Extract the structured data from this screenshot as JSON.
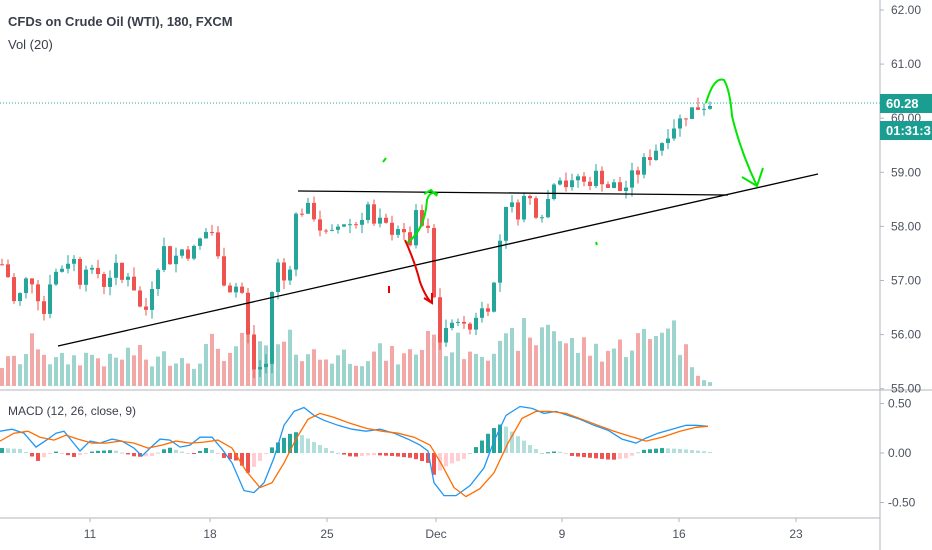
{
  "legend": {
    "title": "CFDs on Crude Oil (WTI), 180, FXCM",
    "volume": "Vol (20)",
    "macd": "MACD (12, 26, close, 9)"
  },
  "price_badge": {
    "last": "60.28",
    "countdown": "01:31:3"
  },
  "colors": {
    "up": "#26a69a",
    "down": "#ef5350",
    "vol_up": "#9dd5ce",
    "vol_down": "#f2a8a6",
    "badge": "#1a9e92",
    "macd_line": "#2196f3",
    "signal_line": "#ff6d00",
    "trend_line": "#000000",
    "annot_green": "#00e600",
    "annot_red": "#e60000"
  },
  "chart_data": [
    {
      "type": "candlestick",
      "title": "CFDs on Crude Oil (WTI), 180, FXCM",
      "y_ticks": [
        "62.00",
        "61.00",
        "60.00",
        "59.00",
        "58.00",
        "57.00",
        "56.00",
        "55.00"
      ],
      "x_ticks": [
        "11",
        "18",
        "25",
        "Dec",
        "9",
        "16",
        "23"
      ],
      "ylim": [
        54.95,
        62.2
      ],
      "last_price": 60.28,
      "close_path": [
        [
          0,
          57.3
        ],
        [
          8,
          57.0
        ],
        [
          14,
          56.4
        ],
        [
          20,
          56.9
        ],
        [
          28,
          57.1
        ],
        [
          36,
          56.7
        ],
        [
          42,
          56.4
        ],
        [
          48,
          57.0
        ],
        [
          56,
          57.2
        ],
        [
          64,
          57.3
        ],
        [
          70,
          57.5
        ],
        [
          78,
          57.0
        ],
        [
          86,
          57.4
        ],
        [
          92,
          57.0
        ],
        [
          98,
          57.2
        ],
        [
          104,
          56.8
        ],
        [
          112,
          57.4
        ],
        [
          118,
          56.9
        ],
        [
          124,
          57.2
        ],
        [
          130,
          57.0
        ],
        [
          136,
          56.6
        ],
        [
          142,
          56.3
        ],
        [
          148,
          56.8
        ],
        [
          156,
          57.3
        ],
        [
          162,
          57.6
        ],
        [
          170,
          57.3
        ],
        [
          178,
          57.6
        ],
        [
          186,
          57.5
        ],
        [
          194,
          57.6
        ],
        [
          202,
          57.9
        ],
        [
          210,
          57.9
        ],
        [
          216,
          57.4
        ],
        [
          222,
          57.0
        ],
        [
          230,
          56.8
        ],
        [
          238,
          57.0
        ],
        [
          244,
          56.3
        ],
        [
          250,
          55.3
        ],
        [
          256,
          55.5
        ],
        [
          262,
          55.2
        ],
        [
          266,
          55.7
        ],
        [
          270,
          56.8
        ],
        [
          276,
          57.3
        ],
        [
          282,
          57.0
        ],
        [
          288,
          57.3
        ],
        [
          292,
          57.9
        ],
        [
          296,
          58.5
        ],
        [
          302,
          58.2
        ],
        [
          308,
          58.4
        ],
        [
          314,
          58.1
        ],
        [
          320,
          57.9
        ],
        [
          328,
          57.8
        ],
        [
          336,
          58.0
        ],
        [
          344,
          58.1
        ],
        [
          352,
          58.0
        ],
        [
          360,
          58.2
        ],
        [
          366,
          58.4
        ],
        [
          372,
          58.0
        ],
        [
          380,
          58.1
        ],
        [
          388,
          57.9
        ],
        [
          396,
          58.0
        ],
        [
          402,
          57.8
        ],
        [
          408,
          57.7
        ],
        [
          414,
          58.2
        ],
        [
          420,
          58.0
        ],
        [
          426,
          57.9
        ],
        [
          430,
          58.0
        ],
        [
          433,
          56.0
        ],
        [
          437,
          55.8
        ],
        [
          442,
          56.2
        ],
        [
          448,
          56.0
        ],
        [
          454,
          56.4
        ],
        [
          460,
          56.2
        ],
        [
          466,
          56.0
        ],
        [
          472,
          56.3
        ],
        [
          478,
          56.5
        ],
        [
          484,
          56.4
        ],
        [
          490,
          56.8
        ],
        [
          496,
          57.2
        ],
        [
          500,
          58.3
        ],
        [
          506,
          58.5
        ],
        [
          512,
          58.3
        ],
        [
          518,
          58.2
        ],
        [
          524,
          58.7
        ],
        [
          530,
          58.4
        ],
        [
          536,
          58.2
        ],
        [
          542,
          58.3
        ],
        [
          548,
          58.6
        ],
        [
          554,
          59.0
        ],
        [
          560,
          58.9
        ],
        [
          566,
          58.7
        ],
        [
          572,
          58.8
        ],
        [
          578,
          59.0
        ],
        [
          584,
          58.7
        ],
        [
          590,
          58.9
        ],
        [
          596,
          59.0
        ],
        [
          602,
          58.8
        ],
        [
          608,
          58.7
        ],
        [
          614,
          58.8
        ],
        [
          620,
          58.6
        ],
        [
          626,
          58.8
        ],
        [
          632,
          59.0
        ],
        [
          638,
          59.0
        ],
        [
          644,
          59.3
        ],
        [
          650,
          59.3
        ],
        [
          656,
          59.5
        ],
        [
          662,
          59.6
        ],
        [
          668,
          59.8
        ],
        [
          674,
          59.9
        ],
        [
          680,
          60.0
        ],
        [
          686,
          60.1
        ],
        [
          692,
          60.2
        ],
        [
          698,
          60.2
        ],
        [
          704,
          60.25
        ],
        [
          708,
          60.28
        ]
      ]
    },
    {
      "type": "bar",
      "title": "Vol (20)",
      "note": "volume histogram, relative heights 0-1 (bars red when candle closes down, teal when up)",
      "volume_path": [
        [
          0,
          0.28
        ],
        [
          20,
          0.35
        ],
        [
          36,
          0.6
        ],
        [
          50,
          0.3
        ],
        [
          70,
          0.35
        ],
        [
          90,
          0.4
        ],
        [
          110,
          0.3
        ],
        [
          130,
          0.45
        ],
        [
          150,
          0.3
        ],
        [
          170,
          0.4
        ],
        [
          190,
          0.32
        ],
        [
          214,
          0.55
        ],
        [
          232,
          0.35
        ],
        [
          244,
          0.62
        ],
        [
          256,
          0.45
        ],
        [
          270,
          0.4
        ],
        [
          290,
          0.55
        ],
        [
          300,
          0.48
        ],
        [
          320,
          0.35
        ],
        [
          340,
          0.4
        ],
        [
          360,
          0.38
        ],
        [
          380,
          0.42
        ],
        [
          400,
          0.35
        ],
        [
          420,
          0.5
        ],
        [
          432,
          0.88
        ],
        [
          440,
          0.55
        ],
        [
          460,
          0.5
        ],
        [
          480,
          0.52
        ],
        [
          500,
          0.45
        ],
        [
          520,
          0.7
        ],
        [
          530,
          0.5
        ],
        [
          548,
          0.92
        ],
        [
          560,
          0.55
        ],
        [
          580,
          0.5
        ],
        [
          600,
          0.45
        ],
        [
          620,
          0.5
        ],
        [
          640,
          0.62
        ],
        [
          650,
          0.55
        ],
        [
          664,
          0.95
        ],
        [
          680,
          0.5
        ],
        [
          700,
          0.12
        ],
        [
          708,
          0.05
        ]
      ]
    },
    {
      "type": "line",
      "title": "MACD (12, 26, close, 9)",
      "y_ticks": [
        "0.50",
        "0.00",
        "-0.50"
      ],
      "ylim": [
        -0.62,
        0.6
      ],
      "series": [
        {
          "name": "MACD",
          "points": [
            [
              0,
              0.22
            ],
            [
              12,
              0.24
            ],
            [
              24,
              0.2
            ],
            [
              36,
              0.06
            ],
            [
              48,
              0.14
            ],
            [
              56,
              0.2
            ],
            [
              64,
              0.22
            ],
            [
              72,
              0.12
            ],
            [
              80,
              0.02
            ],
            [
              90,
              0.12
            ],
            [
              100,
              0.1
            ],
            [
              112,
              0.14
            ],
            [
              122,
              0.12
            ],
            [
              134,
              0.05
            ],
            [
              142,
              -0.03
            ],
            [
              150,
              0.05
            ],
            [
              160,
              0.14
            ],
            [
              170,
              0.13
            ],
            [
              180,
              0.06
            ],
            [
              190,
              0.08
            ],
            [
              200,
              0.16
            ],
            [
              212,
              0.16
            ],
            [
              222,
              0.04
            ],
            [
              232,
              -0.1
            ],
            [
              244,
              -0.38
            ],
            [
              254,
              -0.4
            ],
            [
              264,
              -0.3
            ],
            [
              274,
              -0.05
            ],
            [
              284,
              0.28
            ],
            [
              294,
              0.42
            ],
            [
              304,
              0.46
            ],
            [
              314,
              0.38
            ],
            [
              324,
              0.33
            ],
            [
              338,
              0.28
            ],
            [
              352,
              0.24
            ],
            [
              366,
              0.22
            ],
            [
              380,
              0.24
            ],
            [
              394,
              0.2
            ],
            [
              408,
              0.14
            ],
            [
              420,
              0.08
            ],
            [
              428,
              0.02
            ],
            [
              434,
              -0.3
            ],
            [
              444,
              -0.43
            ],
            [
              456,
              -0.43
            ],
            [
              470,
              -0.33
            ],
            [
              484,
              -0.15
            ],
            [
              494,
              0.12
            ],
            [
              506,
              0.38
            ],
            [
              520,
              0.47
            ],
            [
              532,
              0.45
            ],
            [
              544,
              0.4
            ],
            [
              556,
              0.42
            ],
            [
              568,
              0.38
            ],
            [
              580,
              0.34
            ],
            [
              594,
              0.28
            ],
            [
              608,
              0.23
            ],
            [
              622,
              0.14
            ],
            [
              636,
              0.1
            ],
            [
              646,
              0.15
            ],
            [
              658,
              0.2
            ],
            [
              672,
              0.24
            ],
            [
              686,
              0.28
            ],
            [
              696,
              0.28
            ],
            [
              708,
              0.27
            ]
          ]
        },
        {
          "name": "Signal",
          "points": [
            [
              0,
              0.12
            ],
            [
              14,
              0.2
            ],
            [
              28,
              0.22
            ],
            [
              40,
              0.16
            ],
            [
              54,
              0.13
            ],
            [
              66,
              0.18
            ],
            [
              78,
              0.14
            ],
            [
              92,
              0.1
            ],
            [
              106,
              0.1
            ],
            [
              120,
              0.12
            ],
            [
              134,
              0.1
            ],
            [
              148,
              0.05
            ],
            [
              162,
              0.08
            ],
            [
              176,
              0.12
            ],
            [
              190,
              0.1
            ],
            [
              204,
              0.11
            ],
            [
              218,
              0.13
            ],
            [
              232,
              0.05
            ],
            [
              246,
              -0.18
            ],
            [
              260,
              -0.35
            ],
            [
              272,
              -0.3
            ],
            [
              284,
              -0.1
            ],
            [
              296,
              0.14
            ],
            [
              308,
              0.34
            ],
            [
              320,
              0.4
            ],
            [
              334,
              0.36
            ],
            [
              350,
              0.3
            ],
            [
              366,
              0.25
            ],
            [
              382,
              0.22
            ],
            [
              398,
              0.2
            ],
            [
              414,
              0.16
            ],
            [
              430,
              0.08
            ],
            [
              442,
              -0.12
            ],
            [
              454,
              -0.35
            ],
            [
              466,
              -0.44
            ],
            [
              480,
              -0.36
            ],
            [
              494,
              -0.2
            ],
            [
              508,
              0.1
            ],
            [
              522,
              0.35
            ],
            [
              536,
              0.42
            ],
            [
              550,
              0.42
            ],
            [
              566,
              0.4
            ],
            [
              582,
              0.34
            ],
            [
              598,
              0.28
            ],
            [
              614,
              0.22
            ],
            [
              630,
              0.17
            ],
            [
              646,
              0.12
            ],
            [
              662,
              0.16
            ],
            [
              680,
              0.22
            ],
            [
              696,
              0.26
            ],
            [
              708,
              0.27
            ]
          ]
        }
      ],
      "histogram_path": [
        [
          0,
          0.05
        ],
        [
          20,
          0.04
        ],
        [
          36,
          -0.08
        ],
        [
          52,
          0.02
        ],
        [
          72,
          -0.04
        ],
        [
          92,
          0.02
        ],
        [
          112,
          0.03
        ],
        [
          134,
          -0.04
        ],
        [
          150,
          -0.03
        ],
        [
          166,
          0.06
        ],
        [
          190,
          -0.02
        ],
        [
          206,
          0.06
        ],
        [
          222,
          -0.05
        ],
        [
          236,
          -0.08
        ],
        [
          246,
          -0.2
        ],
        [
          258,
          -0.08
        ],
        [
          268,
          0.04
        ],
        [
          280,
          0.14
        ],
        [
          292,
          0.22
        ],
        [
          300,
          0.18
        ],
        [
          314,
          0.1
        ],
        [
          330,
          0.02
        ],
        [
          350,
          -0.04
        ],
        [
          370,
          -0.02
        ],
        [
          390,
          -0.03
        ],
        [
          410,
          -0.05
        ],
        [
          426,
          -0.1
        ],
        [
          432,
          -0.22
        ],
        [
          446,
          -0.12
        ],
        [
          462,
          -0.06
        ],
        [
          476,
          0.08
        ],
        [
          490,
          0.24
        ],
        [
          500,
          0.3
        ],
        [
          512,
          0.2
        ],
        [
          528,
          0.08
        ],
        [
          540,
          0.0
        ],
        [
          556,
          0.02
        ],
        [
          570,
          -0.03
        ],
        [
          590,
          -0.05
        ],
        [
          610,
          -0.07
        ],
        [
          626,
          -0.05
        ],
        [
          640,
          0.03
        ],
        [
          660,
          0.05
        ],
        [
          680,
          0.04
        ],
        [
          700,
          0.02
        ],
        [
          708,
          0.01
        ]
      ]
    }
  ]
}
